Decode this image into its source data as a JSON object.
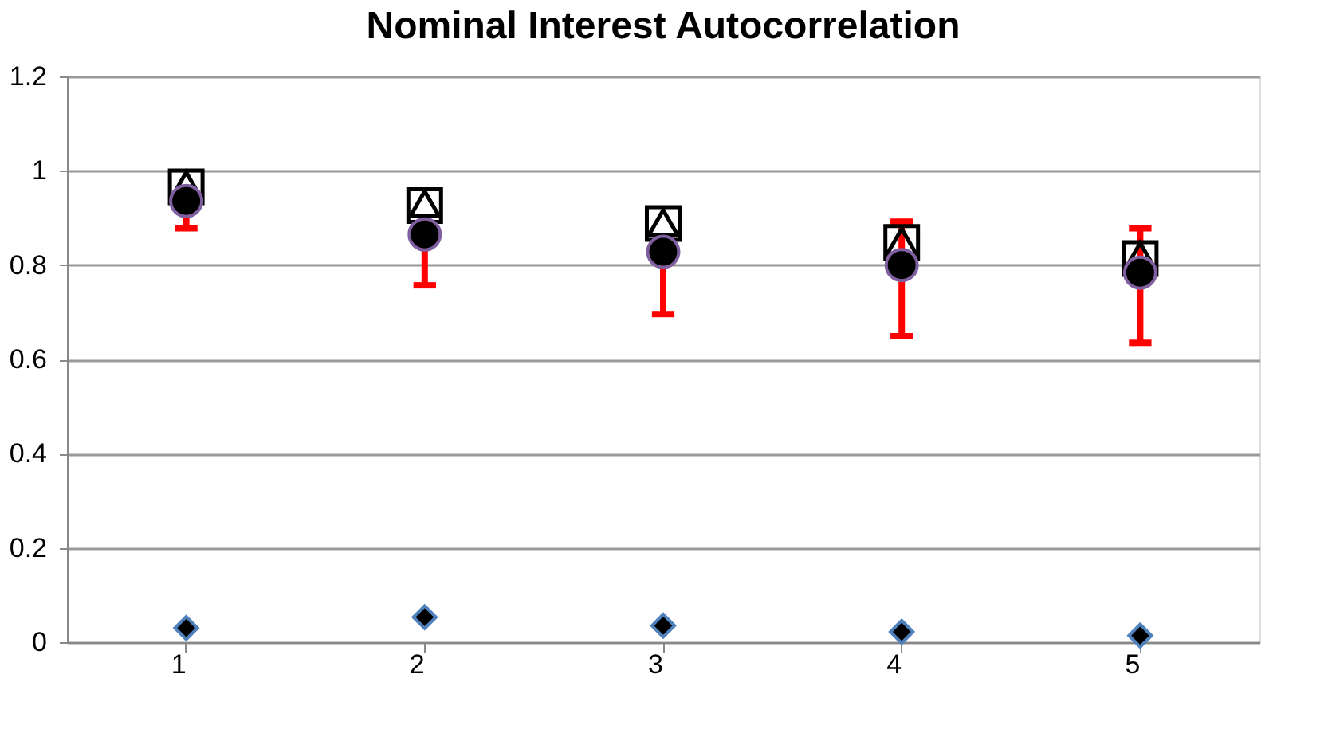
{
  "chart_data": {
    "type": "scatter",
    "title": "Nominal Interest Autocorrelation",
    "categories": [
      "1",
      "2",
      "3",
      "4",
      "5"
    ],
    "ylim": [
      0,
      1.2
    ],
    "yticks": [
      0,
      0.2,
      0.4,
      0.6,
      0.8,
      1,
      1.2
    ],
    "grid": "y",
    "legend": false,
    "series": [
      {
        "color": "#000000",
        "marker": "square",
        "values": [
          0.966,
          0.926,
          0.888,
          0.848,
          0.814
        ]
      },
      {
        "color": "#000000",
        "marker": "triangle",
        "values": [
          0.97,
          0.93,
          0.89,
          0.85,
          0.82
        ]
      },
      {
        "color": "#000000",
        "marker": "circle",
        "values": [
          0.936,
          0.865,
          0.828,
          0.8,
          0.784
        ],
        "errors": [
          [
            0.878,
            0.94
          ],
          [
            0.757,
            0.87
          ],
          [
            0.696,
            0.83
          ],
          [
            0.649,
            0.892
          ],
          [
            0.635,
            0.878
          ]
        ]
      },
      {
        "color": "#000000",
        "marker": "diamond",
        "values": [
          0.03,
          0.053,
          0.035,
          0.022,
          0.014
        ]
      }
    ]
  }
}
